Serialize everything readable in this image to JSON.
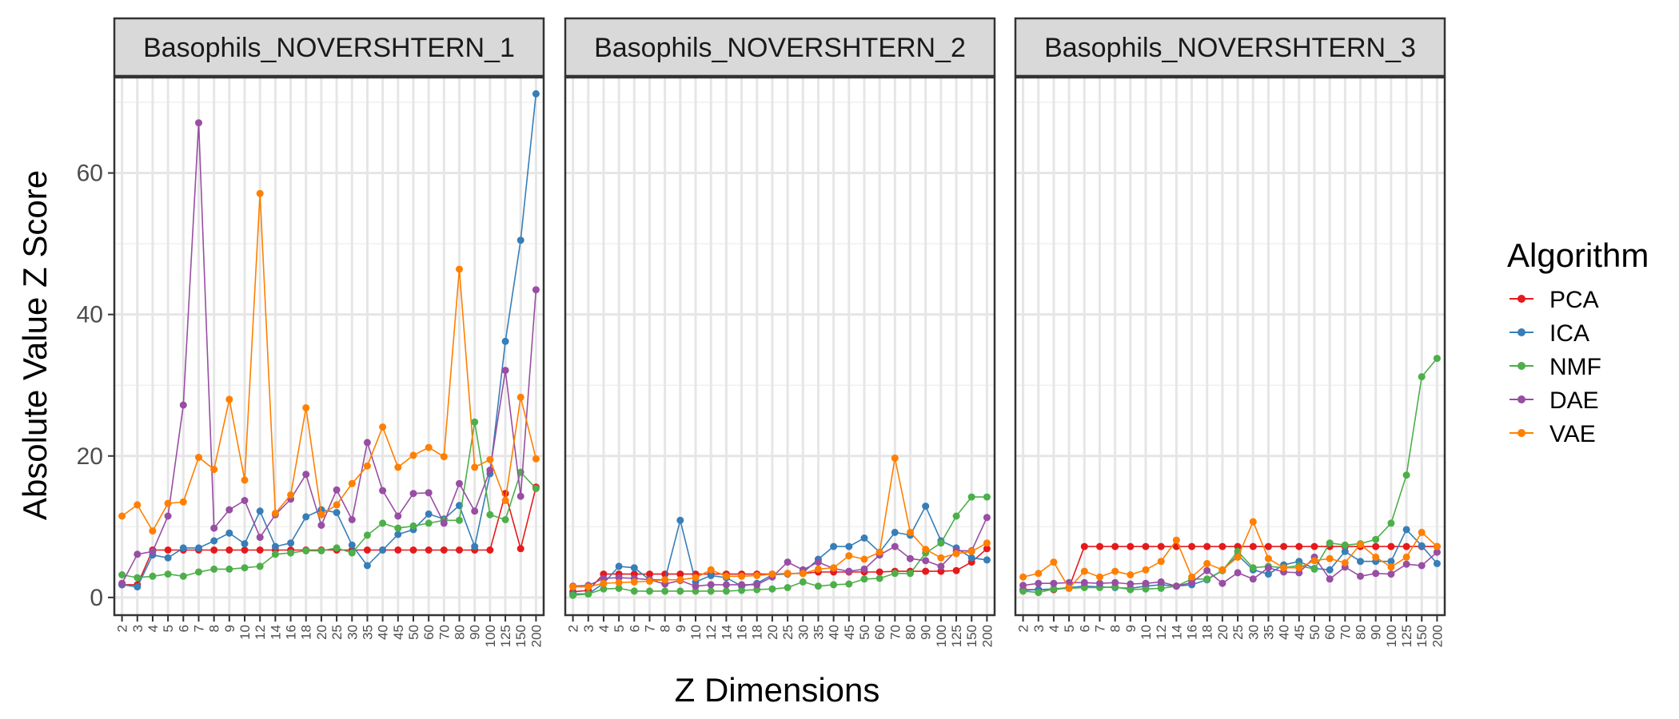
{
  "chart_data": {
    "type": "line",
    "xlabel": "Z Dimensions",
    "ylabel": "Absolute Value Z Score",
    "ylim": [
      -2.5,
      73.5
    ],
    "y_ticks": [
      0,
      20,
      40,
      60
    ],
    "grid": true,
    "legend": {
      "title": "Algorithm",
      "position": "right"
    },
    "categories": [
      "2",
      "3",
      "4",
      "5",
      "6",
      "7",
      "8",
      "9",
      "10",
      "12",
      "14",
      "16",
      "18",
      "20",
      "25",
      "30",
      "35",
      "40",
      "45",
      "50",
      "60",
      "70",
      "80",
      "90",
      "100",
      "125",
      "150",
      "200"
    ],
    "colors": {
      "PCA": "#e41a1c",
      "ICA": "#377eb8",
      "NMF": "#4daf4a",
      "DAE": "#984ea3",
      "VAE": "#ff7f00"
    },
    "panels": [
      {
        "title": "Basophils_NOVERSHTERN_1",
        "series": [
          {
            "name": "PCA",
            "values": [
              1.8,
              1.8,
              6.7,
              6.7,
              6.7,
              6.7,
              6.7,
              6.7,
              6.7,
              6.7,
              6.7,
              6.7,
              6.7,
              6.7,
              6.7,
              6.7,
              6.7,
              6.7,
              6.7,
              6.7,
              6.7,
              6.7,
              6.7,
              6.7,
              6.7,
              14.7,
              6.9,
              15.6
            ]
          },
          {
            "name": "ICA",
            "values": [
              1.8,
              1.5,
              6.0,
              5.6,
              7.0,
              7.0,
              8.0,
              9.1,
              7.6,
              12.2,
              7.2,
              7.7,
              11.4,
              12.4,
              12.0,
              7.4,
              4.5,
              6.7,
              8.9,
              9.6,
              11.8,
              11.1,
              13.0,
              7.2,
              17.5,
              36.2,
              50.5,
              71.2
            ]
          },
          {
            "name": "NMF",
            "values": [
              3.2,
              2.8,
              3.0,
              3.3,
              3.0,
              3.6,
              4.0,
              4.0,
              4.2,
              4.4,
              6.1,
              6.3,
              6.6,
              6.6,
              7.0,
              6.3,
              8.8,
              10.5,
              9.8,
              10.1,
              10.5,
              10.9,
              10.9,
              24.8,
              11.7,
              11.0,
              17.7,
              15.4
            ]
          },
          {
            "name": "DAE",
            "values": [
              2.0,
              6.1,
              6.5,
              11.5,
              27.2,
              67.1,
              9.8,
              12.4,
              13.7,
              8.5,
              11.7,
              13.9,
              17.4,
              10.2,
              15.2,
              11.0,
              21.9,
              15.1,
              11.5,
              14.7,
              14.8,
              10.5,
              16.1,
              12.2,
              18.0,
              32.1,
              14.3,
              43.5
            ]
          },
          {
            "name": "VAE",
            "values": [
              11.5,
              13.1,
              9.4,
              13.3,
              13.5,
              19.8,
              18.1,
              28.0,
              16.6,
              57.1,
              11.9,
              14.5,
              26.8,
              11.7,
              13.1,
              16.1,
              18.6,
              24.1,
              18.4,
              20.1,
              21.2,
              19.9,
              46.4,
              18.4,
              19.5,
              13.7,
              28.3,
              19.6
            ]
          }
        ]
      },
      {
        "title": "Basophils_NOVERSHTERN_2",
        "series": [
          {
            "name": "PCA",
            "values": [
              0.8,
              1.0,
              3.3,
              3.3,
              3.3,
              3.3,
              3.3,
              3.3,
              3.3,
              3.3,
              3.3,
              3.3,
              3.3,
              3.3,
              3.4,
              3.4,
              3.6,
              3.6,
              3.6,
              3.6,
              3.6,
              3.7,
              3.7,
              3.7,
              3.7,
              3.8,
              5.0,
              6.9
            ]
          },
          {
            "name": "ICA",
            "values": [
              0.5,
              0.5,
              2.0,
              4.4,
              4.2,
              2.5,
              2.5,
              10.9,
              2.2,
              3.1,
              2.8,
              1.6,
              2.0,
              3.2,
              3.3,
              3.5,
              5.4,
              7.2,
              7.2,
              8.4,
              6.4,
              9.2,
              8.8,
              12.9,
              8.0,
              7.0,
              5.6,
              5.3
            ]
          },
          {
            "name": "NMF",
            "values": [
              0.3,
              0.5,
              1.2,
              1.3,
              0.9,
              0.9,
              0.9,
              0.9,
              0.9,
              0.9,
              0.9,
              1.0,
              1.1,
              1.2,
              1.4,
              2.2,
              1.6,
              1.8,
              1.9,
              2.6,
              2.7,
              3.4,
              3.4,
              6.3,
              7.7,
              11.5,
              14.2,
              14.2
            ]
          },
          {
            "name": "DAE",
            "values": [
              1.6,
              1.7,
              2.7,
              2.8,
              2.7,
              2.5,
              1.9,
              2.4,
              1.6,
              1.8,
              1.8,
              1.8,
              1.8,
              2.9,
              5.0,
              3.9,
              5.0,
              4.1,
              3.7,
              4.0,
              6.0,
              7.2,
              5.5,
              5.2,
              4.4,
              6.6,
              6.6,
              11.3
            ]
          },
          {
            "name": "VAE",
            "values": [
              1.5,
              1.5,
              2.0,
              2.1,
              2.2,
              2.3,
              2.5,
              2.5,
              2.8,
              3.9,
              3.0,
              3.0,
              3.1,
              3.3,
              3.4,
              3.4,
              4.0,
              4.2,
              5.9,
              5.4,
              6.4,
              19.7,
              9.2,
              6.8,
              5.6,
              6.2,
              6.5,
              7.7
            ]
          }
        ]
      },
      {
        "title": "Basophils_NOVERSHTERN_3",
        "series": [
          {
            "name": "PCA",
            "values": [
              1.1,
              1.1,
              1.1,
              1.4,
              7.2,
              7.2,
              7.2,
              7.2,
              7.2,
              7.2,
              7.2,
              7.2,
              7.2,
              7.2,
              7.2,
              7.2,
              7.2,
              7.2,
              7.2,
              7.2,
              7.2,
              7.2,
              7.2,
              7.2,
              7.2,
              7.2,
              7.2,
              7.2
            ]
          },
          {
            "name": "ICA",
            "values": [
              1.0,
              1.1,
              1.2,
              1.4,
              1.6,
              1.5,
              1.4,
              1.3,
              1.6,
              1.8,
              1.6,
              1.8,
              2.5,
              3.8,
              6.0,
              3.9,
              3.3,
              4.6,
              5.1,
              4.1,
              3.9,
              6.5,
              5.1,
              5.1,
              5.1,
              9.6,
              7.3,
              4.8
            ]
          },
          {
            "name": "NMF",
            "values": [
              0.9,
              0.7,
              1.2,
              1.3,
              1.4,
              1.4,
              1.5,
              1.1,
              1.2,
              1.3,
              1.6,
              2.6,
              2.6,
              3.8,
              6.5,
              4.2,
              4.4,
              4.2,
              4.5,
              4.0,
              7.7,
              7.4,
              7.6,
              8.2,
              10.5,
              17.3,
              31.2,
              33.8
            ]
          },
          {
            "name": "DAE",
            "values": [
              1.7,
              2.0,
              2.0,
              2.1,
              2.1,
              2.0,
              2.1,
              1.9,
              2.0,
              2.2,
              1.6,
              2.1,
              3.8,
              2.0,
              3.5,
              2.6,
              4.2,
              3.6,
              3.5,
              5.7,
              2.6,
              4.3,
              3.0,
              3.4,
              3.3,
              4.7,
              4.5,
              6.4
            ]
          },
          {
            "name": "VAE",
            "values": [
              2.9,
              3.4,
              5.0,
              1.3,
              3.7,
              2.9,
              3.7,
              3.2,
              3.9,
              5.1,
              8.1,
              2.9,
              4.8,
              3.9,
              5.7,
              10.7,
              5.5,
              4.2,
              4.2,
              5.2,
              5.5,
              4.9,
              7.5,
              5.7,
              4.3,
              5.7,
              9.2,
              7.2
            ]
          }
        ]
      }
    ]
  }
}
